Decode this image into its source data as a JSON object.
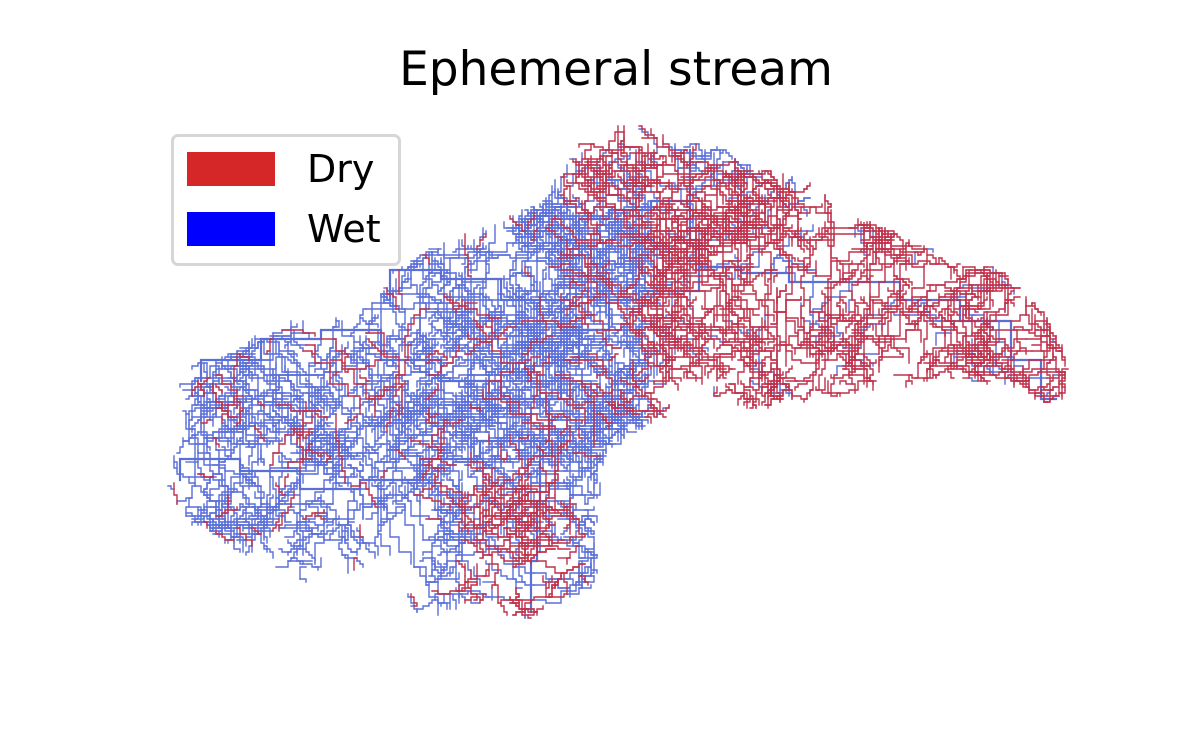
{
  "title": "Ephemeral stream",
  "legend": {
    "entries": [
      {
        "label": "Dry",
        "color": "#d62728"
      },
      {
        "label": "Wet",
        "color": "#0000ff"
      }
    ]
  },
  "stream_colors": {
    "dry": "#c0304a",
    "wet": "#5a6fd8"
  }
}
